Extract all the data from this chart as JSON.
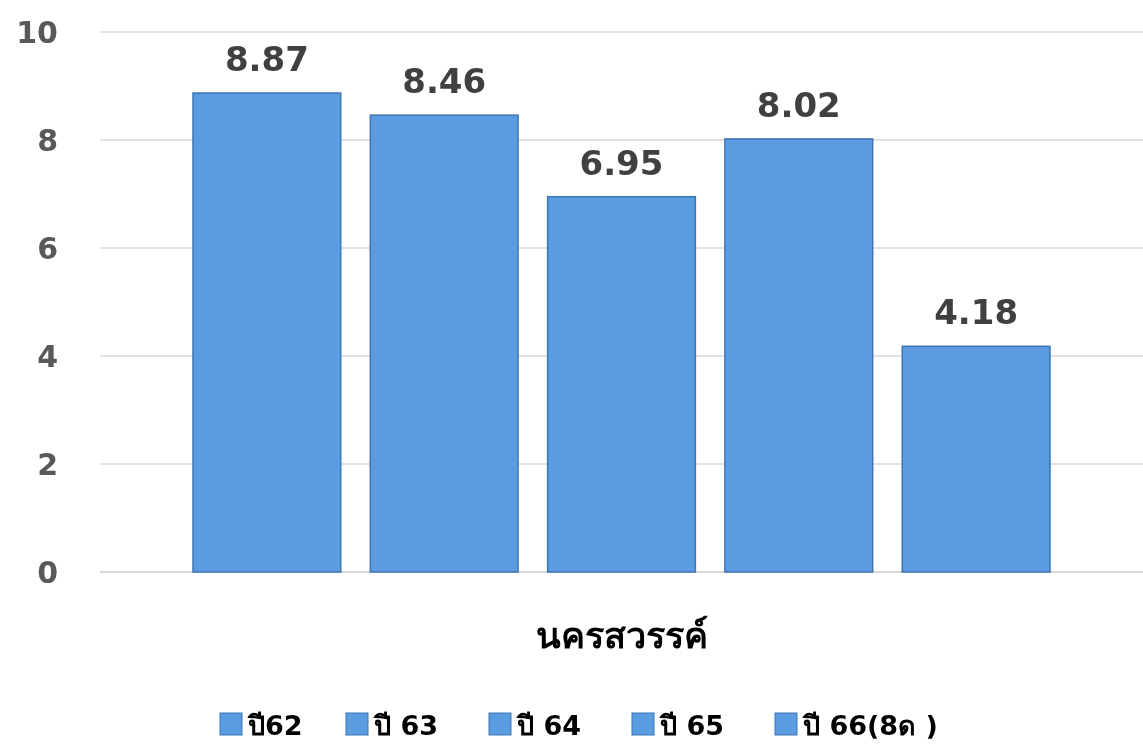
{
  "chart_data": {
    "type": "bar",
    "categories": [
      "นครสวรรค์"
    ],
    "series": [
      {
        "name": "ปี62",
        "color": "#5b9be0",
        "values": [
          8.87
        ]
      },
      {
        "name": "ปี 63",
        "color": "#5b9be0",
        "values": [
          8.46
        ]
      },
      {
        "name": "ปี 64",
        "color": "#5b9be0",
        "values": [
          6.95
        ]
      },
      {
        "name": "ปี 65",
        "color": "#5b9be0",
        "values": [
          8.02
        ]
      },
      {
        "name": "ปี 66(8ด )",
        "color": "#5b9be0",
        "values": [
          4.18
        ]
      }
    ],
    "ylim": [
      0,
      10
    ],
    "yticks": [
      0,
      2,
      4,
      6,
      8,
      10
    ],
    "grid": "y",
    "legend": "bottom",
    "data_labels": true
  }
}
